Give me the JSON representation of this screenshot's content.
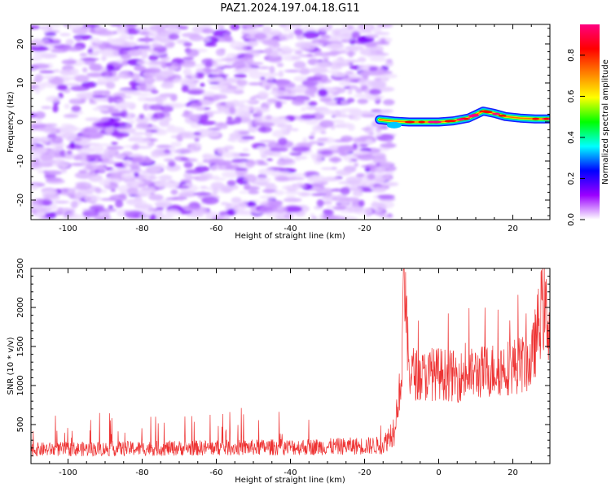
{
  "title": "PAZ1.2024.197.04.18.G11",
  "chart_data": [
    {
      "type": "heatmap",
      "xlabel": "Height of straight line (km)",
      "ylabel": "Frequency (Hz)",
      "xlim": [
        -110,
        30
      ],
      "ylim": [
        -25,
        25
      ],
      "x_ticks": [
        -100,
        -80,
        -60,
        -40,
        -20,
        0,
        20
      ],
      "y_ticks": [
        -20,
        -10,
        0,
        10,
        20
      ],
      "noise_region_x": [
        -110,
        -13
      ],
      "signal_trace": {
        "x": [
          -16,
          -12,
          -8,
          -4,
          0,
          4,
          8,
          12,
          15,
          18,
          22,
          26,
          30
        ],
        "y": [
          0.6,
          0.2,
          0.0,
          0.0,
          0.0,
          0.3,
          1.0,
          2.8,
          2.2,
          1.4,
          1.0,
          0.8,
          0.8
        ]
      },
      "colorbar": {
        "label": "Normalized spectral amplitude",
        "range": [
          0.0,
          0.95
        ],
        "ticks": [
          0.0,
          0.2,
          0.4,
          0.6,
          0.8
        ],
        "colormap": [
          "#ffffff",
          "#9b00ff",
          "#0000ff",
          "#00ffff",
          "#00ff00",
          "#ffff00",
          "#ff8000",
          "#ff0000",
          "#ff0080"
        ]
      },
      "grid": false
    },
    {
      "type": "line",
      "xlabel": "Height of straight line (km)",
      "ylabel": "SNR (10 * v/v)",
      "xlim": [
        -110,
        30
      ],
      "ylim": [
        0,
        2500
      ],
      "x_ticks": [
        -100,
        -80,
        -60,
        -40,
        -20,
        0,
        20
      ],
      "y_ticks": [
        500,
        1000,
        1500,
        2000,
        2500
      ],
      "series_color": "#ee3333",
      "envelope": {
        "x": [
          -110,
          -90,
          -70,
          -50,
          -30,
          -15,
          -12,
          -10,
          -9.5,
          -8,
          -5,
          0,
          5,
          10,
          15,
          20,
          25,
          28,
          30
        ],
        "y": [
          200,
          210,
          220,
          230,
          240,
          260,
          500,
          1200,
          2550,
          1300,
          1200,
          1250,
          1200,
          1250,
          1300,
          1350,
          1400,
          2200,
          1900
        ]
      },
      "grid": false
    }
  ]
}
